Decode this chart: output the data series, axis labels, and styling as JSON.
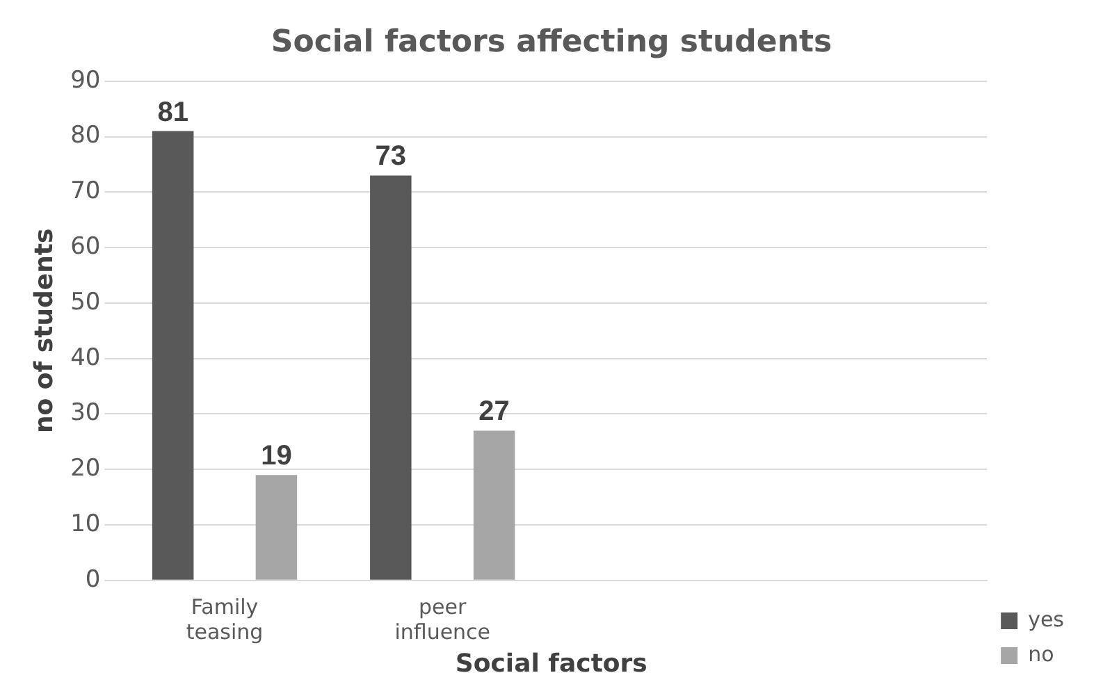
{
  "chart_data": {
    "type": "bar",
    "title": "Social factors affecting students",
    "xlabel": "Social factors",
    "ylabel": "no of students",
    "categories": [
      "Family teasing",
      "peer influence",
      null,
      null
    ],
    "series": [
      {
        "name": "yes",
        "color": "#595959",
        "values": [
          81,
          73,
          null,
          null
        ]
      },
      {
        "name": "no",
        "color": "#a6a6a6",
        "values": [
          19,
          27,
          null,
          null
        ]
      }
    ],
    "ylim": [
      0,
      90
    ],
    "yticks": [
      0,
      10,
      20,
      30,
      40,
      50,
      60,
      70,
      80,
      90
    ],
    "grid": "y",
    "legend": "bottom right",
    "data_labels": true
  }
}
